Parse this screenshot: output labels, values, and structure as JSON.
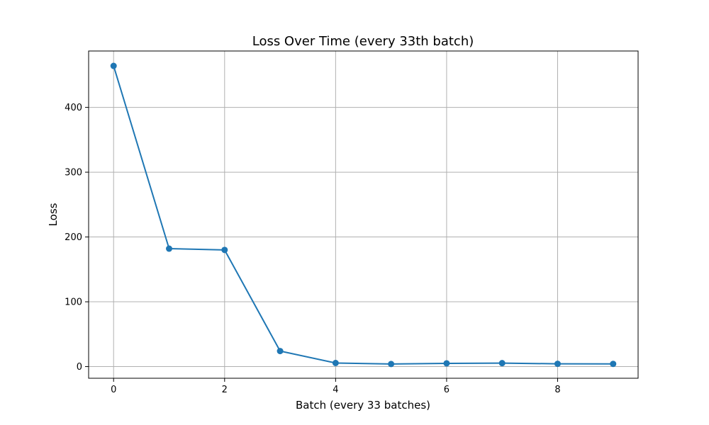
{
  "chart_data": {
    "type": "line",
    "title": "Loss Over Time (every 33th batch)",
    "xlabel": "Batch (every 33 batches)",
    "ylabel": "Loss",
    "x": [
      0,
      1,
      2,
      3,
      4,
      5,
      6,
      7,
      8,
      9
    ],
    "series": [
      {
        "values": [
          464,
          182,
          180,
          24,
          5.5,
          4,
          5,
          5.3,
          4.3,
          4.2
        ],
        "color": "#1f77b4",
        "marker": "circle"
      }
    ],
    "xlim": [
      -0.45,
      9.45
    ],
    "ylim": [
      -18,
      487
    ],
    "xticks": [
      0,
      2,
      4,
      6,
      8
    ],
    "yticks": [
      0,
      100,
      200,
      300,
      400
    ],
    "grid": true
  }
}
